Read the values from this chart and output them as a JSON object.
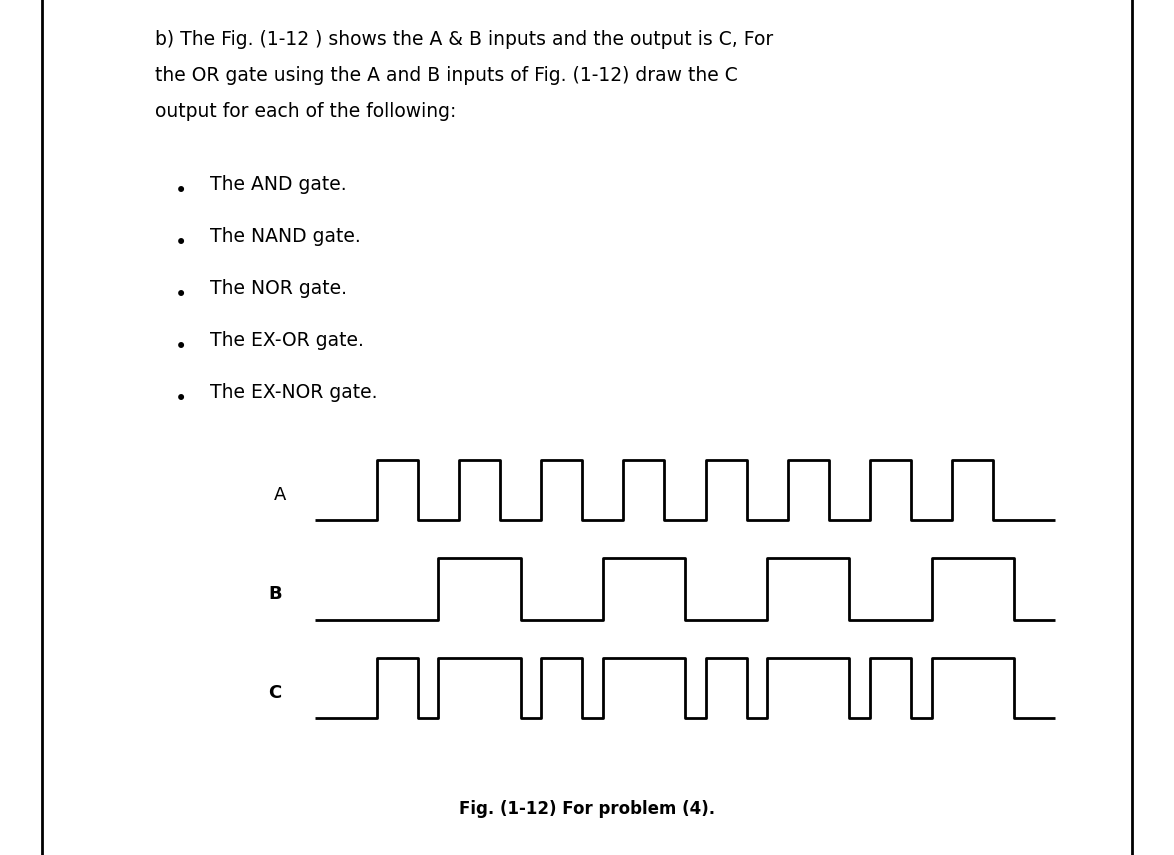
{
  "bg_color": "#ffffff",
  "line_color": "#000000",
  "border_color": "#000000",
  "header_lines": [
    "b) The Fig. (1-12 ) shows the A & B inputs and the output is C, For",
    "the OR gate using the A and B inputs of Fig. (1-12) draw the C",
    "output for each of the following:"
  ],
  "bullet_items": [
    "The AND gate.",
    "The NAND gate.",
    "The NOR gate.",
    "The EX-OR gate.",
    "The EX-NOR gate."
  ],
  "caption": "Fig. (1-12) For problem (4).",
  "label_A": "A",
  "label_B": "B",
  "label_C": "C",
  "font_size_header": 13.5,
  "font_size_bullet": 13.5,
  "font_size_caption": 12,
  "font_size_label": 13
}
